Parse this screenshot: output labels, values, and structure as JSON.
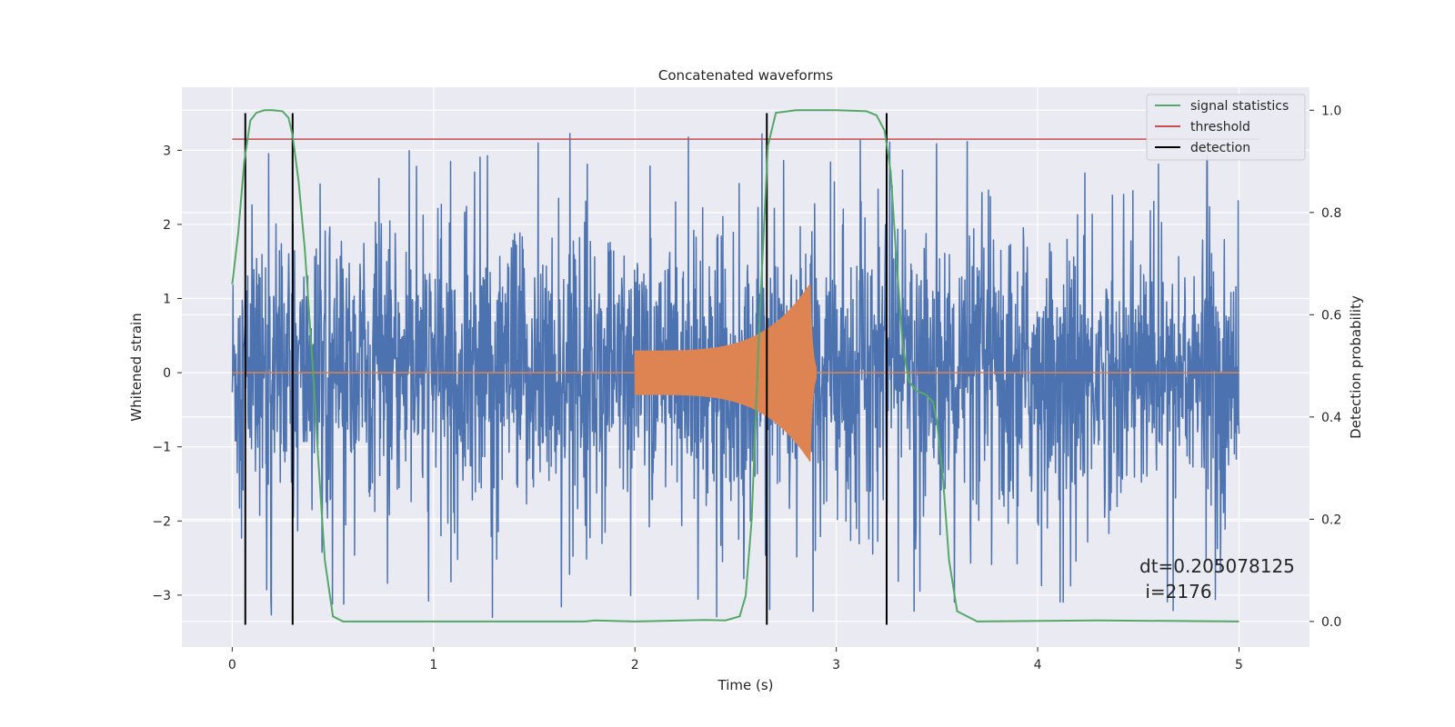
{
  "chart_data": {
    "type": "line",
    "title": "Concatenated waveforms",
    "xlabel": "Time (s)",
    "ylabel": "Whitened strain",
    "ylabel_right": "Detection probability",
    "xlim": [
      -0.25,
      5.35
    ],
    "ylim": [
      -3.7,
      3.85
    ],
    "ylim_right": [
      -0.05,
      1.045
    ],
    "x_ticks": [
      0,
      1,
      2,
      3,
      4,
      5
    ],
    "x_tick_labels": [
      "0",
      "1",
      "2",
      "3",
      "4",
      "5"
    ],
    "y_ticks": [
      -3,
      -2,
      -1,
      0,
      1,
      2,
      3
    ],
    "y_tick_labels": [
      "−3",
      "−2",
      "−1",
      "0",
      "1",
      "2",
      "3"
    ],
    "y_right_ticks": [
      0.0,
      0.2,
      0.4,
      0.6,
      0.8,
      1.0
    ],
    "y_right_tick_labels": [
      "0.0",
      "0.2",
      "0.4",
      "0.6",
      "0.8",
      "1.0"
    ],
    "grid": true,
    "legend_position": "top-right",
    "colors": {
      "noise": "#4c72b0",
      "injected_signal": "#dd8452",
      "signal_statistics": "#55a868",
      "threshold": "#c44e52",
      "detection": "#000000",
      "background": "#eaeaf2",
      "grid": "#ffffff"
    },
    "noise": {
      "x_range": [
        0,
        5
      ],
      "core_amplitude": 0.85,
      "peak_amplitude": 3.3
    },
    "injected_signal": {
      "x_range": [
        2.0,
        2.9
      ],
      "amplitude_start": 0.3,
      "amplitude_peak": 1.2,
      "peak_time": 2.87
    },
    "threshold": {
      "name": "threshold",
      "y": 3.15,
      "x_range": [
        0,
        5.1
      ]
    },
    "signal_statistics": {
      "name": "signal statistics",
      "axis": "right",
      "x": [
        0,
        0.03,
        0.06,
        0.09,
        0.12,
        0.16,
        0.2,
        0.25,
        0.28,
        0.3,
        0.33,
        0.36,
        0.4,
        0.43,
        0.46,
        0.5,
        0.55,
        1.0,
        1.5,
        1.75,
        1.8,
        2.0,
        2.35,
        2.45,
        2.52,
        2.55,
        2.58,
        2.62,
        2.66,
        2.7,
        2.8,
        3.0,
        3.15,
        3.2,
        3.24,
        3.27,
        3.3,
        3.33,
        3.36,
        3.4,
        3.44,
        3.48,
        3.5,
        3.53,
        3.56,
        3.6,
        3.7,
        4.3,
        5.0
      ],
      "y": [
        0.66,
        0.76,
        0.9,
        0.98,
        0.995,
        1.0,
        1.0,
        0.998,
        0.985,
        0.95,
        0.86,
        0.73,
        0.5,
        0.3,
        0.12,
        0.01,
        0.0,
        0.0,
        0.0,
        0.0,
        0.002,
        0.0,
        0.003,
        0.002,
        0.01,
        0.05,
        0.2,
        0.6,
        0.93,
        0.995,
        1.0,
        1.0,
        0.998,
        0.99,
        0.96,
        0.88,
        0.7,
        0.54,
        0.47,
        0.45,
        0.445,
        0.43,
        0.39,
        0.28,
        0.12,
        0.02,
        0.0,
        0.002,
        0.0
      ]
    },
    "detection": {
      "name": "detection",
      "x": [
        0.065,
        0.3,
        2.655,
        3.25
      ],
      "y_range": [
        -3.4,
        3.5
      ]
    },
    "legend": [
      "signal statistics",
      "threshold",
      "detection"
    ],
    "annotation": {
      "line1": "dt=0.205078125",
      "line2": " i=2176"
    }
  }
}
